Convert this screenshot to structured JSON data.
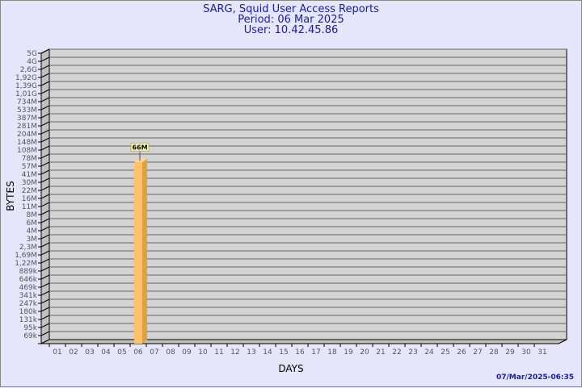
{
  "header": {
    "title": "SARG, Squid User Access Reports",
    "period": "Period: 06 Mar 2025",
    "user": "User: 10.42.45.86"
  },
  "footer": {
    "generated": "07/Mar/2025-06:35"
  },
  "chart_data": {
    "type": "bar",
    "title": "SARG, Squid User Access Reports",
    "xlabel": "DAYS",
    "ylabel": "BYTES",
    "y_scale": "log",
    "y_tick_labels": [
      "69k",
      "95k",
      "131k",
      "180k",
      "247k",
      "341k",
      "469k",
      "646k",
      "889k",
      "1,22M",
      "1,69M",
      "2,3M",
      "3M",
      "4M",
      "6M",
      "8M",
      "11M",
      "16M",
      "22M",
      "30M",
      "41M",
      "57M",
      "78M",
      "108M",
      "148M",
      "204M",
      "281M",
      "387M",
      "533M",
      "734M",
      "1,01G",
      "1,39G",
      "1,92G",
      "2,6G",
      "4G",
      "5G"
    ],
    "categories": [
      "01",
      "02",
      "03",
      "04",
      "05",
      "06",
      "07",
      "08",
      "09",
      "10",
      "11",
      "12",
      "13",
      "14",
      "15",
      "16",
      "17",
      "18",
      "19",
      "20",
      "21",
      "22",
      "23",
      "24",
      "25",
      "26",
      "27",
      "28",
      "29",
      "30",
      "31"
    ],
    "values": [
      null,
      null,
      null,
      null,
      null,
      "66M",
      null,
      null,
      null,
      null,
      null,
      null,
      null,
      null,
      null,
      null,
      null,
      null,
      null,
      null,
      null,
      null,
      null,
      null,
      null,
      null,
      null,
      null,
      null,
      null,
      null
    ],
    "data_labels": {
      "06": "66M"
    },
    "grid": true,
    "colors": {
      "bar": "#ffc266",
      "bar_side": "#e0a040",
      "plot_bg": "#d3d3d3",
      "wall": "#c0c0c0",
      "title": "#1a1aa6"
    }
  }
}
